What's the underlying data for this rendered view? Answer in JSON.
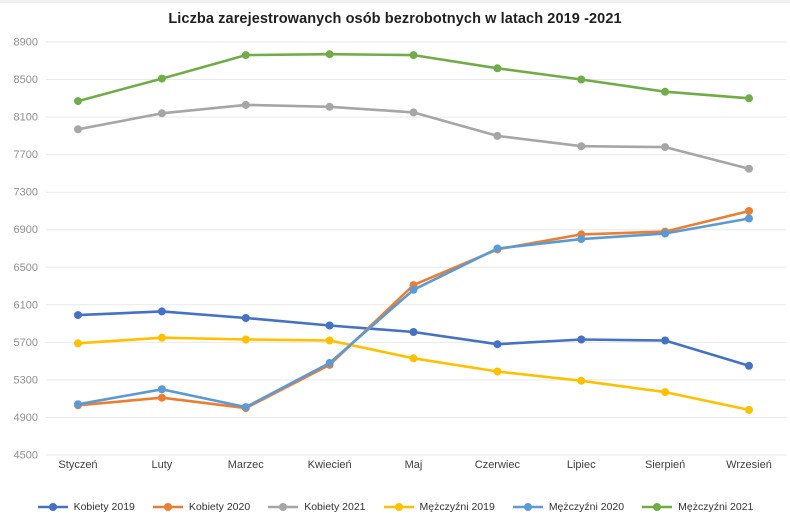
{
  "page": {
    "background": "#ffffff",
    "top_rule_color": "#f1f1f1",
    "gridline_color": "#e9e9e9",
    "ytick_color": "#8f8f8f",
    "xtick_color": "#3f3f3f",
    "title_color": "#1f1f1f"
  },
  "chart_data": {
    "type": "line",
    "title": "Liczba zarejestrowanych osób bezrobotnych w latach 2019 -2021",
    "xlabel": "",
    "ylabel": "",
    "x": [
      "Styczeń",
      "Luty",
      "Marzec",
      "Kwiecień",
      "Maj",
      "Czerwiec",
      "Lipiec",
      "Sierpień",
      "Wrzesień"
    ],
    "series": [
      {
        "name": "Kobiety 2019",
        "color": "#4472C4",
        "values": [
          5990,
          6030,
          5960,
          5880,
          5810,
          5680,
          5730,
          5720,
          5450
        ]
      },
      {
        "name": "Kobiety 2020",
        "color": "#ED7D31",
        "values": [
          5030,
          5110,
          5000,
          5460,
          6310,
          6690,
          6850,
          6880,
          7100
        ]
      },
      {
        "name": "Kobiety 2021",
        "color": "#A6A6A6",
        "values": [
          7970,
          8140,
          8230,
          8210,
          8150,
          7900,
          7790,
          7780,
          7550
        ]
      },
      {
        "name": "Mężczyźni 2019",
        "color": "#FFC000",
        "values": [
          5690,
          5750,
          5730,
          5720,
          5530,
          5390,
          5290,
          5170,
          4980
        ]
      },
      {
        "name": "Mężczyźni 2020",
        "color": "#5B9BD5",
        "values": [
          5040,
          5200,
          5010,
          5480,
          6260,
          6700,
          6800,
          6860,
          7020
        ]
      },
      {
        "name": "Mężczyźni 2021",
        "color": "#70AD47",
        "values": [
          8270,
          8510,
          8760,
          8770,
          8760,
          8620,
          8500,
          8370,
          8300
        ]
      }
    ],
    "ylim": [
      4500,
      8900
    ],
    "ytick_step": 400,
    "grid": true,
    "legend_position": "bottom"
  },
  "axes": {
    "y_ticks": [
      8900,
      8500,
      8100,
      7700,
      7300,
      6900,
      6500,
      6100,
      5700,
      5300,
      4900,
      4500
    ]
  }
}
